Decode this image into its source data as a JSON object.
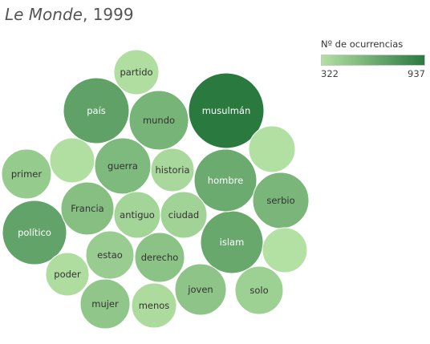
{
  "chart_data": {
    "type": "bubble",
    "title_italic": "Le Monde",
    "title_rest": ", 1999",
    "legend": {
      "title": "Nº de ocurrencias",
      "min": 322,
      "max": 937,
      "min_label": "322",
      "max_label": "937",
      "color_low": "#b3e0a3",
      "color_high": "#2a7a40"
    },
    "items": [
      {
        "label": "musulmán",
        "value": 937
      },
      {
        "label": "país",
        "value": 700
      },
      {
        "label": "político",
        "value": 690
      },
      {
        "label": "islam",
        "value": 660
      },
      {
        "label": "hombre",
        "value": 640
      },
      {
        "label": "mundo",
        "value": 590
      },
      {
        "label": "serbio",
        "value": 580
      },
      {
        "label": "guerra",
        "value": 560
      },
      {
        "label": "Francia",
        "value": 520
      },
      {
        "label": "derecho",
        "value": 500
      },
      {
        "label": "joven",
        "value": 490
      },
      {
        "label": "mujer",
        "value": 480
      },
      {
        "label": "primer",
        "value": 450
      },
      {
        "label": "estao",
        "value": 440
      },
      {
        "label": "solo",
        "value": 420
      },
      {
        "label": "ciudad",
        "value": 400
      },
      {
        "label": "antiguo",
        "value": 390
      },
      {
        "label": "historia",
        "value": 370
      },
      {
        "label": "menos",
        "value": 350
      },
      {
        "label": "poder",
        "value": 340
      },
      {
        "label": "partido",
        "value": 335
      },
      {
        "label": "",
        "value": 330
      },
      {
        "label": "",
        "value": 326
      },
      {
        "label": "",
        "value": 322
      }
    ]
  }
}
